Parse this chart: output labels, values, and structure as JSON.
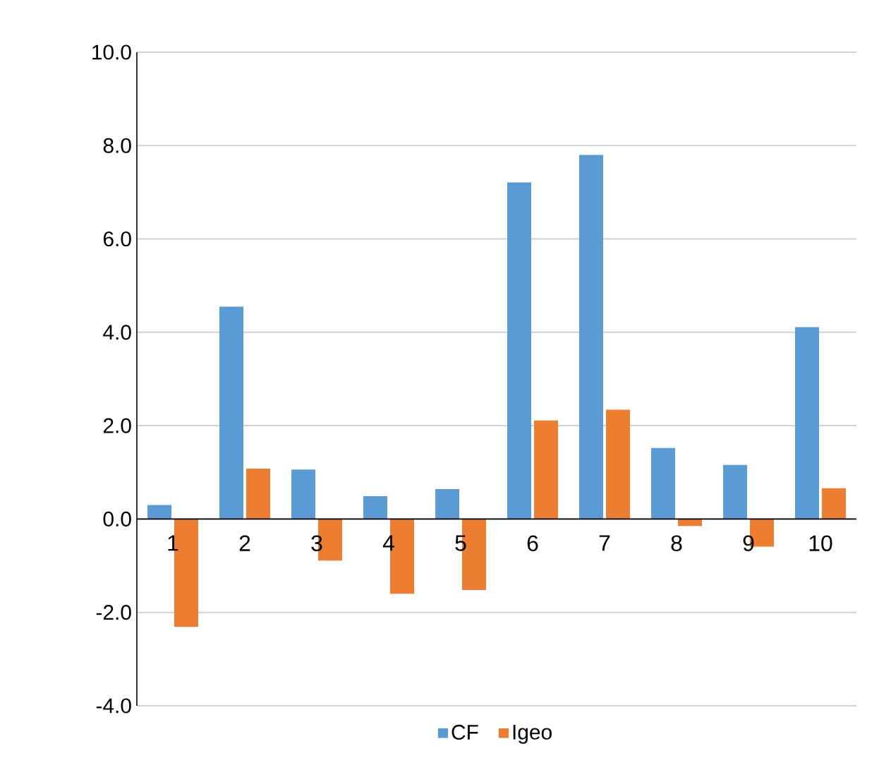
{
  "chart_data": {
    "type": "bar",
    "categories": [
      "1",
      "2",
      "3",
      "4",
      "5",
      "6",
      "7",
      "8",
      "9",
      "10"
    ],
    "series": [
      {
        "name": "CF",
        "color": "#5b9bd5",
        "values": [
          0.3,
          4.55,
          1.06,
          0.49,
          0.64,
          7.21,
          7.8,
          1.52,
          1.16,
          4.11
        ]
      },
      {
        "name": "Igeo",
        "color": "#ed7d31",
        "values": [
          -2.31,
          1.08,
          -0.89,
          -1.6,
          -1.52,
          2.11,
          2.34,
          -0.15,
          -0.59,
          0.66
        ]
      }
    ],
    "ylim": [
      -4,
      10
    ],
    "yticks": [
      {
        "value": -4,
        "label": "-4.0"
      },
      {
        "value": -2,
        "label": "-2.0"
      },
      {
        "value": 0,
        "label": "0.0"
      },
      {
        "value": 2,
        "label": "2.0"
      },
      {
        "value": 4,
        "label": "4.0"
      },
      {
        "value": 6,
        "label": "6.0"
      },
      {
        "value": 8,
        "label": "8.0"
      },
      {
        "value": 10,
        "label": "10.0"
      }
    ],
    "grid": "y",
    "legend": "bottom"
  }
}
